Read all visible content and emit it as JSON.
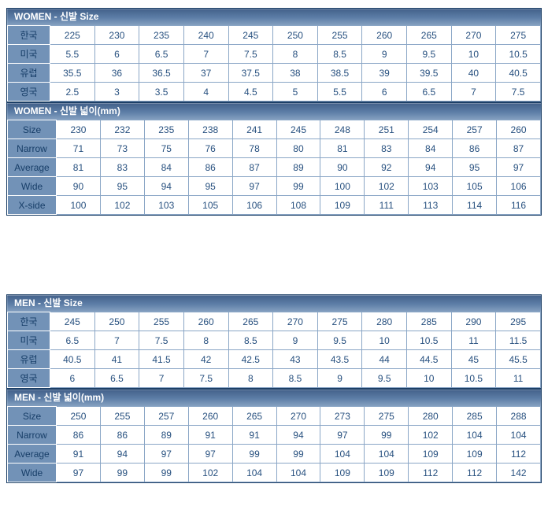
{
  "colors": {
    "title_gradient_top": "#426089",
    "title_gradient_mid": "#5d7ea7",
    "title_gradient_bottom": "#84a0c0",
    "title_text": "#ffffff",
    "outer_border": "#1c3f66",
    "row_header_bg": "#7292b7",
    "row_header_text": "#173e68",
    "grid_line": "#8aa6c6",
    "cell_bg": "#ffffff",
    "cell_text": "#27507f",
    "page_bg": "#ffffff"
  },
  "tables": [
    {
      "id": "women-size",
      "title": "WOMEN - 신발 Size",
      "header_col_width": 54,
      "gap_above": false,
      "rows": [
        {
          "label": "한국",
          "values": [
            "225",
            "230",
            "235",
            "240",
            "245",
            "250",
            "255",
            "260",
            "265",
            "270",
            "275"
          ]
        },
        {
          "label": "미국",
          "values": [
            "5.5",
            "6",
            "6.5",
            "7",
            "7.5",
            "8",
            "8.5",
            "9",
            "9.5",
            "10",
            "10.5"
          ]
        },
        {
          "label": "유럽",
          "values": [
            "35.5",
            "36",
            "36.5",
            "37",
            "37.5",
            "38",
            "38.5",
            "39",
            "39.5",
            "40",
            "40.5"
          ]
        },
        {
          "label": "영국",
          "values": [
            "2.5",
            "3",
            "3.5",
            "4",
            "4.5",
            "5",
            "5.5",
            "6",
            "6.5",
            "7",
            "7.5"
          ]
        }
      ]
    },
    {
      "id": "women-width",
      "title": "WOMEN - 신발 넓이(mm)",
      "header_col_width": 62,
      "gap_above": false,
      "rows": [
        {
          "label": "Size",
          "values": [
            "230",
            "232",
            "235",
            "238",
            "241",
            "245",
            "248",
            "251",
            "254",
            "257",
            "260"
          ]
        },
        {
          "label": "Narrow",
          "values": [
            "71",
            "73",
            "75",
            "76",
            "78",
            "80",
            "81",
            "83",
            "84",
            "86",
            "87"
          ]
        },
        {
          "label": "Average",
          "values": [
            "81",
            "83",
            "84",
            "86",
            "87",
            "89",
            "90",
            "92",
            "94",
            "95",
            "97"
          ]
        },
        {
          "label": "Wide",
          "values": [
            "90",
            "95",
            "94",
            "95",
            "97",
            "99",
            "100",
            "102",
            "103",
            "105",
            "106"
          ]
        },
        {
          "label": "X-side",
          "values": [
            "100",
            "102",
            "103",
            "105",
            "106",
            "108",
            "109",
            "111",
            "113",
            "114",
            "116"
          ]
        }
      ]
    },
    {
      "id": "men-size",
      "title": "MEN - 신발 Size",
      "header_col_width": 54,
      "gap_above": true,
      "rows": [
        {
          "label": "한국",
          "values": [
            "245",
            "250",
            "255",
            "260",
            "265",
            "270",
            "275",
            "280",
            "285",
            "290",
            "295"
          ]
        },
        {
          "label": "미국",
          "values": [
            "6.5",
            "7",
            "7.5",
            "8",
            "8.5",
            "9",
            "9.5",
            "10",
            "10.5",
            "11",
            "11.5"
          ]
        },
        {
          "label": "유럽",
          "values": [
            "40.5",
            "41",
            "41.5",
            "42",
            "42.5",
            "43",
            "43.5",
            "44",
            "44.5",
            "45",
            "45.5"
          ]
        },
        {
          "label": "영국",
          "values": [
            "6",
            "6.5",
            "7",
            "7.5",
            "8",
            "8.5",
            "9",
            "9.5",
            "10",
            "10.5",
            "11"
          ]
        }
      ]
    },
    {
      "id": "men-width",
      "title": "MEN - 신발 넓이(mm)",
      "header_col_width": 62,
      "gap_above": false,
      "rows": [
        {
          "label": "Size",
          "values": [
            "250",
            "255",
            "257",
            "260",
            "265",
            "270",
            "273",
            "275",
            "280",
            "285",
            "288"
          ]
        },
        {
          "label": "Narrow",
          "values": [
            "86",
            "86",
            "89",
            "91",
            "91",
            "94",
            "97",
            "99",
            "102",
            "104",
            "104"
          ]
        },
        {
          "label": "Average",
          "values": [
            "91",
            "94",
            "97",
            "97",
            "99",
            "99",
            "104",
            "104",
            "109",
            "109",
            "112"
          ]
        },
        {
          "label": "Wide",
          "values": [
            "97",
            "99",
            "99",
            "102",
            "104",
            "104",
            "109",
            "109",
            "112",
            "112",
            "142"
          ]
        }
      ]
    }
  ]
}
